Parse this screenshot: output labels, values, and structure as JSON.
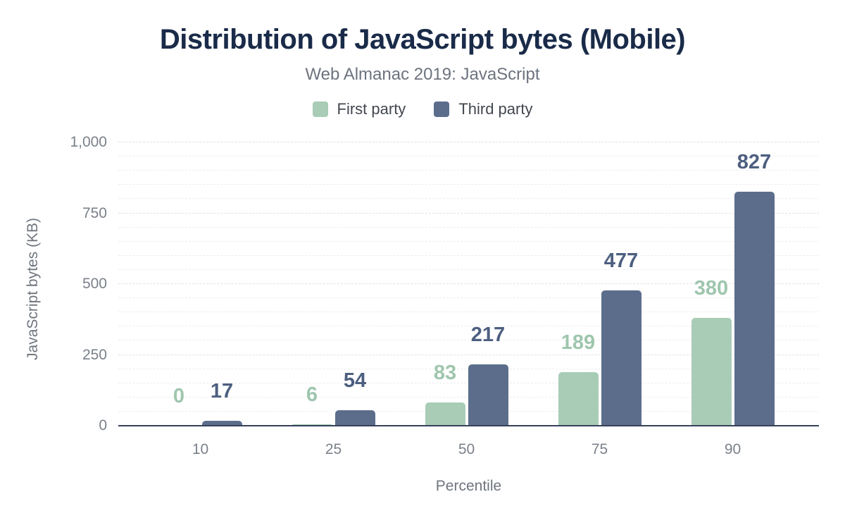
{
  "chart_data": {
    "type": "bar",
    "title": "Distribution of JavaScript bytes (Mobile)",
    "subtitle": "Web Almanac 2019: JavaScript",
    "xlabel": "Percentile",
    "ylabel": "JavaScript bytes (KB)",
    "categories": [
      "10",
      "25",
      "50",
      "75",
      "90"
    ],
    "series": [
      {
        "name": "First party",
        "values": [
          0,
          6,
          83,
          189,
          380
        ],
        "color": "#a8ccb6",
        "label_color": "#9fc6ae"
      },
      {
        "name": "Third party",
        "values": [
          17,
          54,
          217,
          477,
          827
        ],
        "color": "#5c6d8c",
        "label_color": "#4d5f80"
      }
    ],
    "ylim": [
      0,
      1000
    ],
    "y_ticks": [
      {
        "value": 0,
        "label": "0"
      },
      {
        "value": 250,
        "label": "250"
      },
      {
        "value": 500,
        "label": "500"
      },
      {
        "value": 750,
        "label": "750"
      },
      {
        "value": 1000,
        "label": "1,000"
      }
    ],
    "grid": {
      "on": true,
      "minor_step": 50,
      "major_step": 250,
      "style": "dashed"
    },
    "legend_position": "top",
    "data_labels": true
  }
}
